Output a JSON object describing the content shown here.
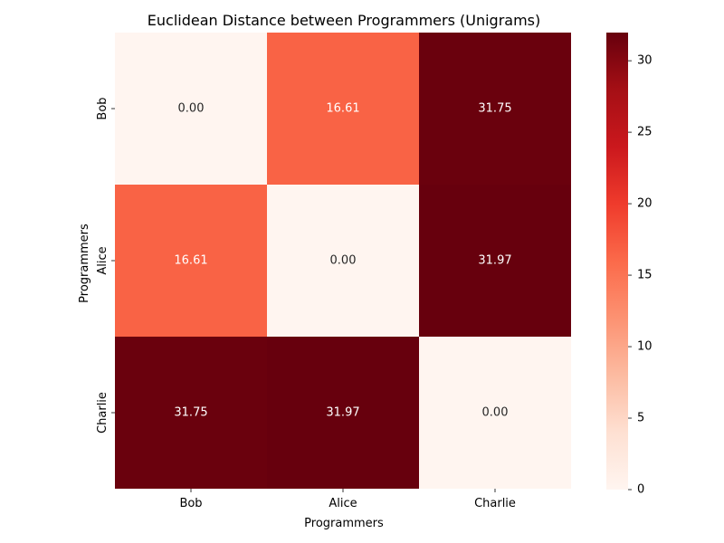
{
  "chart_data": {
    "type": "heatmap",
    "title": "Euclidean Distance between Programmers (Unigrams)",
    "xlabel": "Programmers",
    "ylabel": "Programmers",
    "x_categories": [
      "Bob",
      "Alice",
      "Charlie"
    ],
    "y_categories": [
      "Bob",
      "Alice",
      "Charlie"
    ],
    "values": [
      [
        0.0,
        16.61,
        31.75
      ],
      [
        16.61,
        0.0,
        31.97
      ],
      [
        31.75,
        31.97,
        0.0
      ]
    ],
    "value_labels": [
      [
        "0.00",
        "16.61",
        "31.75"
      ],
      [
        "16.61",
        "0.00",
        "31.97"
      ],
      [
        "31.75",
        "31.97",
        "0.00"
      ]
    ],
    "colorbar": {
      "min": 0,
      "max": 31.97,
      "ticks": [
        0,
        5,
        10,
        15,
        20,
        25,
        30
      ],
      "colormap": "Reds"
    },
    "grid": false
  }
}
